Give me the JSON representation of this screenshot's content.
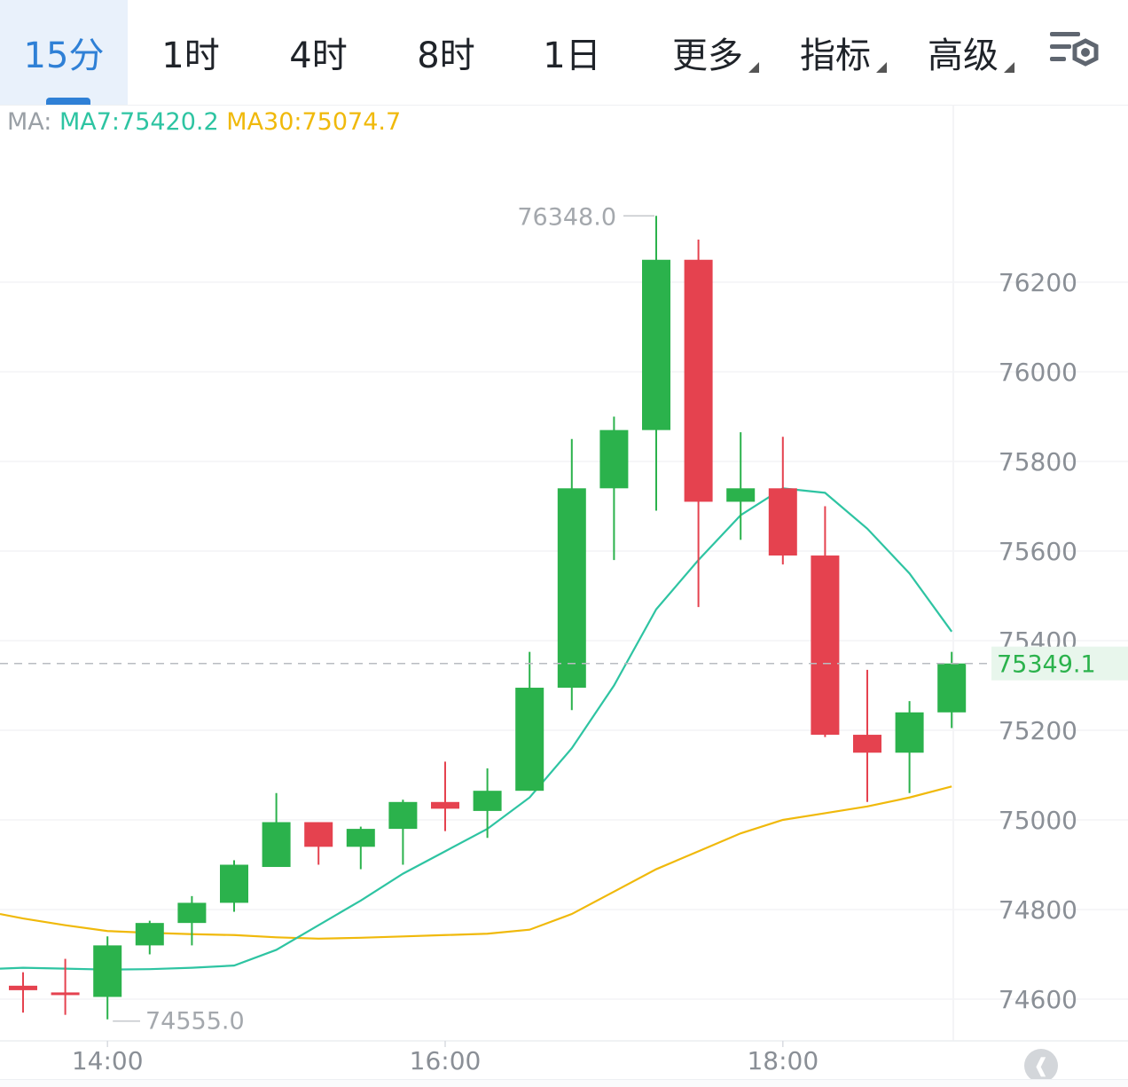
{
  "tabs": [
    {
      "label": "15分",
      "active": true
    },
    {
      "label": "1时"
    },
    {
      "label": "4时"
    },
    {
      "label": "8时"
    },
    {
      "label": "1日"
    },
    {
      "label": "更多",
      "dropdown": true
    },
    {
      "label": "指标",
      "dropdown": true
    },
    {
      "label": "高级",
      "dropdown": true
    }
  ],
  "settings_icon": "chart-settings-icon",
  "ma_legend": {
    "label": "MA:",
    "ma7": "MA7:75420.2",
    "ma30": "MA30:75074.7"
  },
  "colors": {
    "up": "#2bb24c",
    "down": "#e5424f",
    "ma7": "#2ec4a2",
    "ma30": "#f0b90b",
    "accent": "#2f80d6"
  },
  "chart_data": {
    "type": "candlestick",
    "y_ticks": [
      76200,
      76000,
      75800,
      75600,
      75400,
      75200,
      75000,
      74800,
      74600
    ],
    "x_ticks": [
      "14:00",
      "16:00",
      "18:00"
    ],
    "high_label": "76348.0",
    "low_label": "74555.0",
    "last_price": "75349.1",
    "candles": [
      {
        "o": 74630,
        "c": 74620,
        "h": 74660,
        "l": 74570
      },
      {
        "o": 74615,
        "c": 74610,
        "h": 74690,
        "l": 74565
      },
      {
        "o": 74605,
        "c": 74720,
        "h": 74740,
        "l": 74555
      },
      {
        "o": 74720,
        "c": 74770,
        "h": 74775,
        "l": 74700
      },
      {
        "o": 74770,
        "c": 74815,
        "h": 74830,
        "l": 74720
      },
      {
        "o": 74815,
        "c": 74900,
        "h": 74910,
        "l": 74795
      },
      {
        "o": 74895,
        "c": 74995,
        "h": 75060,
        "l": 74895
      },
      {
        "o": 74995,
        "c": 74940,
        "h": 74995,
        "l": 74900
      },
      {
        "o": 74940,
        "c": 74980,
        "h": 74985,
        "l": 74890
      },
      {
        "o": 74980,
        "c": 75040,
        "h": 75045,
        "l": 74900
      },
      {
        "o": 75040,
        "c": 75025,
        "h": 75130,
        "l": 74975
      },
      {
        "o": 75020,
        "c": 75065,
        "h": 75115,
        "l": 74960
      },
      {
        "o": 75065,
        "c": 75295,
        "h": 75375,
        "l": 75065
      },
      {
        "o": 75295,
        "c": 75740,
        "h": 75850,
        "l": 75245
      },
      {
        "o": 75740,
        "c": 75870,
        "h": 75900,
        "l": 75580
      },
      {
        "o": 75870,
        "c": 76250,
        "h": 76348,
        "l": 75690
      },
      {
        "o": 76250,
        "c": 75710,
        "h": 76295,
        "l": 75475
      },
      {
        "o": 75710,
        "c": 75740,
        "h": 75865,
        "l": 75625
      },
      {
        "o": 75740,
        "c": 75590,
        "h": 75855,
        "l": 75570
      },
      {
        "o": 75590,
        "c": 75190,
        "h": 75700,
        "l": 75185
      },
      {
        "o": 75190,
        "c": 75150,
        "h": 75335,
        "l": 75040
      },
      {
        "o": 75150,
        "c": 75240,
        "h": 75265,
        "l": 75060
      },
      {
        "o": 75240,
        "c": 75349.1,
        "h": 75375,
        "l": 75205
      }
    ],
    "ma7": [
      74670,
      74668,
      74666,
      74667,
      74670,
      74675,
      74710,
      74765,
      74820,
      74880,
      74930,
      74980,
      75050,
      75160,
      75300,
      75470,
      75580,
      75680,
      75740,
      75730,
      75650,
      75550,
      75420.2
    ],
    "ma30": [
      74780,
      74765,
      74752,
      74748,
      74745,
      74743,
      74738,
      74735,
      74737,
      74740,
      74743,
      74746,
      74755,
      74790,
      74840,
      74890,
      74930,
      74970,
      75000,
      75015,
      75030,
      75050,
      75074.7
    ]
  }
}
